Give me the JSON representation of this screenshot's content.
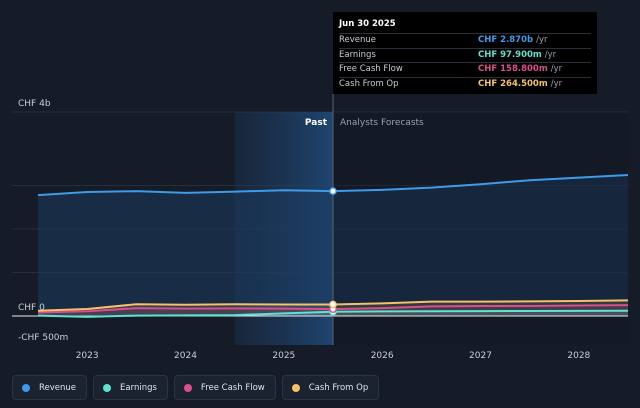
{
  "chart_data": {
    "type": "area",
    "ylim": [
      -500,
      4000
    ],
    "y_labels": [
      {
        "value": 4000,
        "text": "CHF 4b"
      },
      {
        "value": 0,
        "text": "CHF 0"
      },
      {
        "value": -500,
        "text": "-CHF 500m"
      }
    ],
    "x_ticks": [
      2023,
      2024,
      2025,
      2026,
      2027,
      2028
    ],
    "xlim": [
      2022.5,
      2028.5
    ],
    "past_label": "Past",
    "forecast_label": "Analysts Forecasts",
    "divider_x": 2025.5,
    "shade_from": 2024.5,
    "series": [
      {
        "name": "Revenue",
        "color": "#3d9be9",
        "x": [
          2022.5,
          2023.0,
          2023.5,
          2024.0,
          2024.5,
          2025.0,
          2025.5,
          2026.0,
          2026.5,
          2027.0,
          2027.5,
          2028.0,
          2028.5
        ],
        "y": [
          2780,
          2850,
          2870,
          2830,
          2860,
          2890,
          2870,
          2900,
          2950,
          3030,
          3120,
          3180,
          3240
        ]
      },
      {
        "name": "Earnings",
        "color": "#5de3cf",
        "x": [
          2022.5,
          2023.0,
          2023.5,
          2024.0,
          2024.5,
          2025.0,
          2025.5,
          2026.0,
          2026.5,
          2027.0,
          2027.5,
          2028.0,
          2028.5
        ],
        "y": [
          10,
          -20,
          10,
          15,
          20,
          60,
          97.9,
          105,
          110,
          112,
          115,
          118,
          120
        ]
      },
      {
        "name": "Free Cash Flow",
        "color": "#d94f8a",
        "x": [
          2022.5,
          2023.0,
          2023.5,
          2024.0,
          2024.5,
          2025.0,
          2025.5,
          2026.0,
          2026.5,
          2027.0,
          2027.5,
          2028.0,
          2028.5
        ],
        "y": [
          80,
          110,
          180,
          170,
          175,
          170,
          158.8,
          180,
          220,
          230,
          230,
          240,
          250
        ]
      },
      {
        "name": "Cash From Op",
        "color": "#f5c26b",
        "x": [
          2022.5,
          2023.0,
          2023.5,
          2024.0,
          2024.5,
          2025.0,
          2025.5,
          2026.0,
          2026.5,
          2027.0,
          2027.5,
          2028.0,
          2028.5
        ],
        "y": [
          120,
          160,
          270,
          260,
          270,
          265,
          264.5,
          290,
          330,
          330,
          335,
          345,
          360
        ]
      }
    ]
  },
  "tooltip": {
    "date": "Jun 30 2025",
    "rows": [
      {
        "label": "Revenue",
        "value": "CHF 2.870b",
        "unit": "/yr",
        "color": "#3d9be9"
      },
      {
        "label": "Earnings",
        "value": "CHF 97.900m",
        "unit": "/yr",
        "color": "#5de3cf"
      },
      {
        "label": "Free Cash Flow",
        "value": "CHF 158.800m",
        "unit": "/yr",
        "color": "#d94f8a"
      },
      {
        "label": "Cash From Op",
        "value": "CHF 264.500m",
        "unit": "/yr",
        "color": "#f5c26b"
      }
    ]
  },
  "legend": [
    {
      "label": "Revenue",
      "color": "#3d9be9"
    },
    {
      "label": "Earnings",
      "color": "#5de3cf"
    },
    {
      "label": "Free Cash Flow",
      "color": "#d94f8a"
    },
    {
      "label": "Cash From Op",
      "color": "#f5c26b"
    }
  ]
}
